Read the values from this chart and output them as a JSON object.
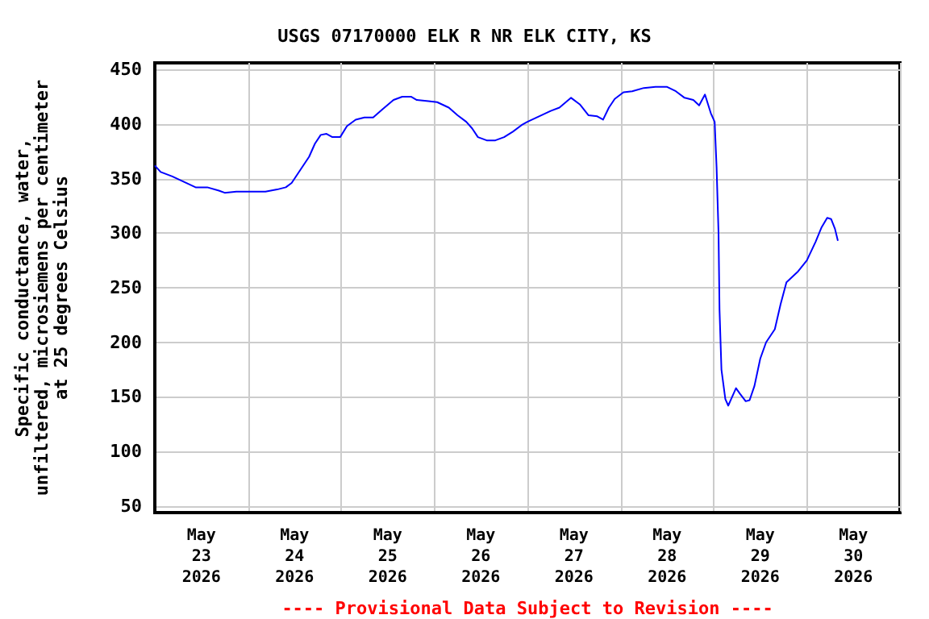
{
  "chart_data": {
    "type": "line",
    "title": "USGS 07170000 ELK R NR ELK CITY, KS",
    "ylabel": "Specific conductance, water,\nunfiltered, microsiemens per centimeter\nat 25 degrees Celsius",
    "annotations": [
      "---- Provisional Data Subject to Revision ----"
    ],
    "x": [
      "2026-05-23T00:00",
      "2026-05-23T01:30",
      "2026-05-23T04:30",
      "2026-05-23T07:30",
      "2026-05-23T10:30",
      "2026-05-23T13:30",
      "2026-05-23T16:30",
      "2026-05-23T18:00",
      "2026-05-23T21:00",
      "2026-05-24T00:00",
      "2026-05-24T04:30",
      "2026-05-24T07:30",
      "2026-05-24T09:45",
      "2026-05-24T11:15",
      "2026-05-24T13:30",
      "2026-05-24T15:45",
      "2026-05-24T17:15",
      "2026-05-24T18:45",
      "2026-05-24T20:15",
      "2026-05-24T21:45",
      "2026-05-24T23:45",
      "2026-05-25T01:30",
      "2026-05-25T03:45",
      "2026-05-25T06:00",
      "2026-05-25T08:15",
      "2026-05-25T10:30",
      "2026-05-25T13:30",
      "2026-05-25T15:45",
      "2026-05-25T18:00",
      "2026-05-25T19:30",
      "2026-05-25T22:30",
      "2026-05-26T00:45",
      "2026-05-26T03:45",
      "2026-05-26T06:00",
      "2026-05-26T08:15",
      "2026-05-26T09:45",
      "2026-05-26T11:15",
      "2026-05-26T13:30",
      "2026-05-26T15:45",
      "2026-05-26T18:00",
      "2026-05-26T20:15",
      "2026-05-26T22:30",
      "2026-05-27T00:00",
      "2026-05-27T03:00",
      "2026-05-27T06:00",
      "2026-05-27T08:15",
      "2026-05-27T11:15",
      "2026-05-27T13:30",
      "2026-05-27T15:45",
      "2026-05-27T18:00",
      "2026-05-27T19:30",
      "2026-05-27T21:00",
      "2026-05-27T22:30",
      "2026-05-28T00:45",
      "2026-05-28T03:00",
      "2026-05-28T06:00",
      "2026-05-28T09:00",
      "2026-05-28T12:00",
      "2026-05-28T14:15",
      "2026-05-28T16:30",
      "2026-05-28T18:45",
      "2026-05-28T20:15",
      "2026-05-28T21:45",
      "2026-05-28T23:15",
      "2026-05-29T00:15",
      "2026-05-29T00:45",
      "2026-05-29T01:15",
      "2026-05-29T01:30",
      "2026-05-29T02:00",
      "2026-05-29T03:00",
      "2026-05-29T03:45",
      "2026-05-29T04:30",
      "2026-05-29T05:45",
      "2026-05-29T06:45",
      "2026-05-29T08:15",
      "2026-05-29T09:15",
      "2026-05-29T10:30",
      "2026-05-29T12:00",
      "2026-05-29T13:30",
      "2026-05-29T15:45",
      "2026-05-29T17:15",
      "2026-05-29T18:45",
      "2026-05-29T20:15",
      "2026-05-29T21:45",
      "2026-05-30T00:00",
      "2026-05-30T02:15",
      "2026-05-30T03:45",
      "2026-05-30T05:15",
      "2026-05-30T06:15",
      "2026-05-30T07:15",
      "2026-05-30T08:00"
    ],
    "series": [
      {
        "color": "#0000ff",
        "values": [
          362,
          356,
          352,
          347,
          342,
          342,
          339,
          337,
          338,
          338,
          338,
          340,
          342,
          346,
          358,
          370,
          382,
          390,
          391,
          388,
          388,
          398,
          404,
          406,
          406,
          413,
          422,
          425,
          425,
          422,
          421,
          420,
          415,
          408,
          402,
          396,
          388,
          385,
          385,
          388,
          393,
          399,
          402,
          407,
          412,
          415,
          424,
          418,
          408,
          407,
          404,
          415,
          423,
          429,
          430,
          433,
          434,
          434,
          430,
          424,
          422,
          417,
          427,
          410,
          402,
          360,
          300,
          230,
          175,
          148,
          142,
          148,
          158,
          153,
          146,
          147,
          160,
          185,
          200,
          212,
          235,
          255,
          260,
          265,
          275,
          292,
          305,
          314,
          313,
          304,
          293
        ]
      }
    ],
    "xlim": [
      "2026-05-23T00:00",
      "2026-05-31T00:00"
    ],
    "xticks": [
      {
        "value": "2026-05-23T00:00",
        "label": null
      },
      {
        "value": "2026-05-23T12:00",
        "label": "May\n23\n2026"
      },
      {
        "value": "2026-05-24T00:00",
        "label": null
      },
      {
        "value": "2026-05-24T12:00",
        "label": "May\n24\n2026"
      },
      {
        "value": "2026-05-25T00:00",
        "label": null
      },
      {
        "value": "2026-05-25T12:00",
        "label": "May\n25\n2026"
      },
      {
        "value": "2026-05-26T00:00",
        "label": null
      },
      {
        "value": "2026-05-26T12:00",
        "label": "May\n26\n2026"
      },
      {
        "value": "2026-05-27T00:00",
        "label": null
      },
      {
        "value": "2026-05-27T12:00",
        "label": "May\n27\n2026"
      },
      {
        "value": "2026-05-28T00:00",
        "label": null
      },
      {
        "value": "2026-05-28T12:00",
        "label": "May\n28\n2026"
      },
      {
        "value": "2026-05-29T00:00",
        "label": null
      },
      {
        "value": "2026-05-29T12:00",
        "label": "May\n29\n2026"
      },
      {
        "value": "2026-05-30T00:00",
        "label": null
      },
      {
        "value": "2026-05-30T12:00",
        "label": "May\n30\n2026"
      },
      {
        "value": "2026-05-31T00:00",
        "label": null
      }
    ],
    "ylim": [
      44,
      456
    ],
    "yticks": [
      50,
      100,
      150,
      200,
      250,
      300,
      350,
      400,
      450
    ],
    "grid": true,
    "marker": "none",
    "line_style": "solid"
  }
}
